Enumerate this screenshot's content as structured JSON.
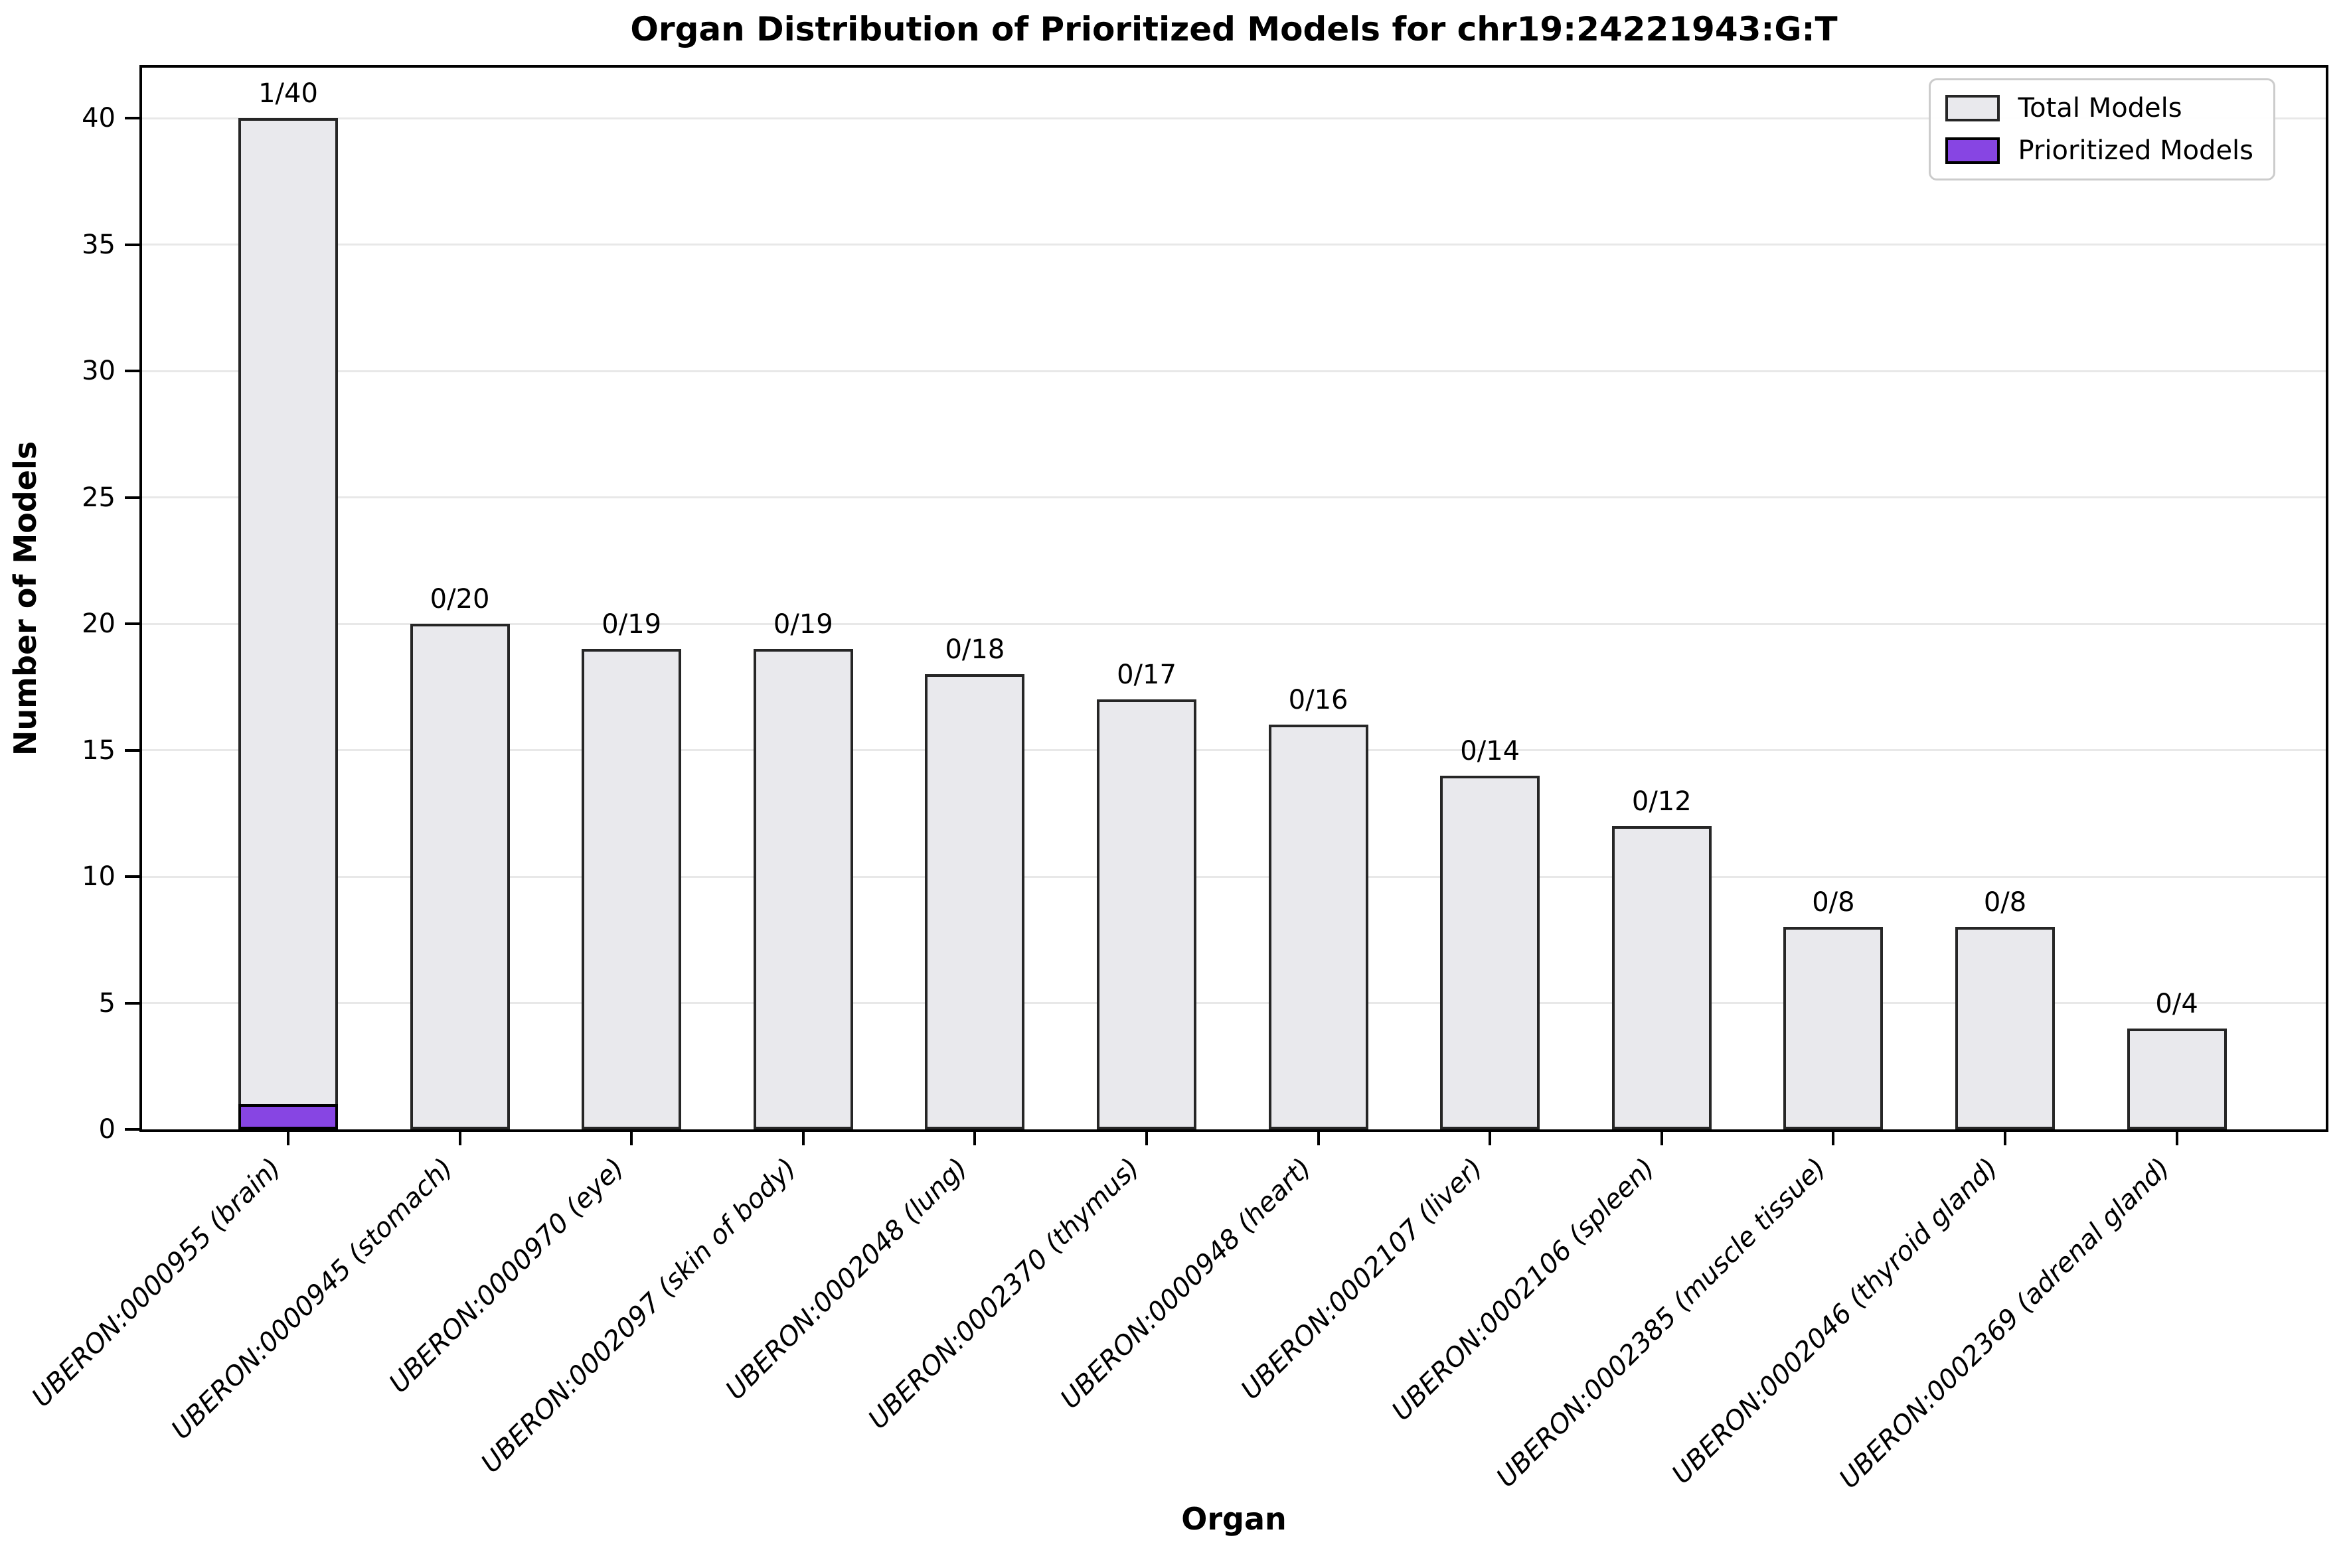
{
  "title": "Organ Distribution of Prioritized Models for chr19:24221943:G:T",
  "axes": {
    "x_label": "Organ",
    "y_label": "Number of Models",
    "y_ticks": [
      0,
      5,
      10,
      15,
      20,
      25,
      30,
      35,
      40
    ]
  },
  "legend": {
    "items": [
      {
        "label": "Total Models",
        "color_key": "total"
      },
      {
        "label": "Prioritized Models",
        "color_key": "prioritized"
      }
    ]
  },
  "colors": {
    "total_fill": "#E9E9ED",
    "total_edge": "#262626",
    "prioritized_fill": "#8745E3",
    "prioritized_edge": "#000000",
    "grid": "#E8E8E8",
    "spine": "#000000"
  },
  "chart_data": {
    "type": "bar",
    "title": "Organ Distribution of Prioritized Models for chr19:24221943:G:T",
    "xlabel": "Organ",
    "ylabel": "Number of Models",
    "ylim": [
      0,
      42
    ],
    "grid": true,
    "legend_position": "upper right",
    "categories": [
      "UBERON:0000955 (brain)",
      "UBERON:0000945 (stomach)",
      "UBERON:0000970 (eye)",
      "UBERON:0002097 (skin of body)",
      "UBERON:0002048 (lung)",
      "UBERON:0002370 (thymus)",
      "UBERON:0000948 (heart)",
      "UBERON:0002107 (liver)",
      "UBERON:0002106 (spleen)",
      "UBERON:0002385 (muscle tissue)",
      "UBERON:0002046 (thyroid gland)",
      "UBERON:0002369 (adrenal gland)"
    ],
    "series": [
      {
        "name": "Total Models",
        "values": [
          40,
          20,
          19,
          19,
          18,
          17,
          16,
          14,
          12,
          8,
          8,
          4
        ]
      },
      {
        "name": "Prioritized Models",
        "values": [
          1,
          0,
          0,
          0,
          0,
          0,
          0,
          0,
          0,
          0,
          0,
          0
        ]
      }
    ],
    "bar_annotations": [
      "1/40",
      "0/20",
      "0/19",
      "0/19",
      "0/18",
      "0/17",
      "0/16",
      "0/14",
      "0/12",
      "0/8",
      "0/8",
      "0/4"
    ]
  }
}
